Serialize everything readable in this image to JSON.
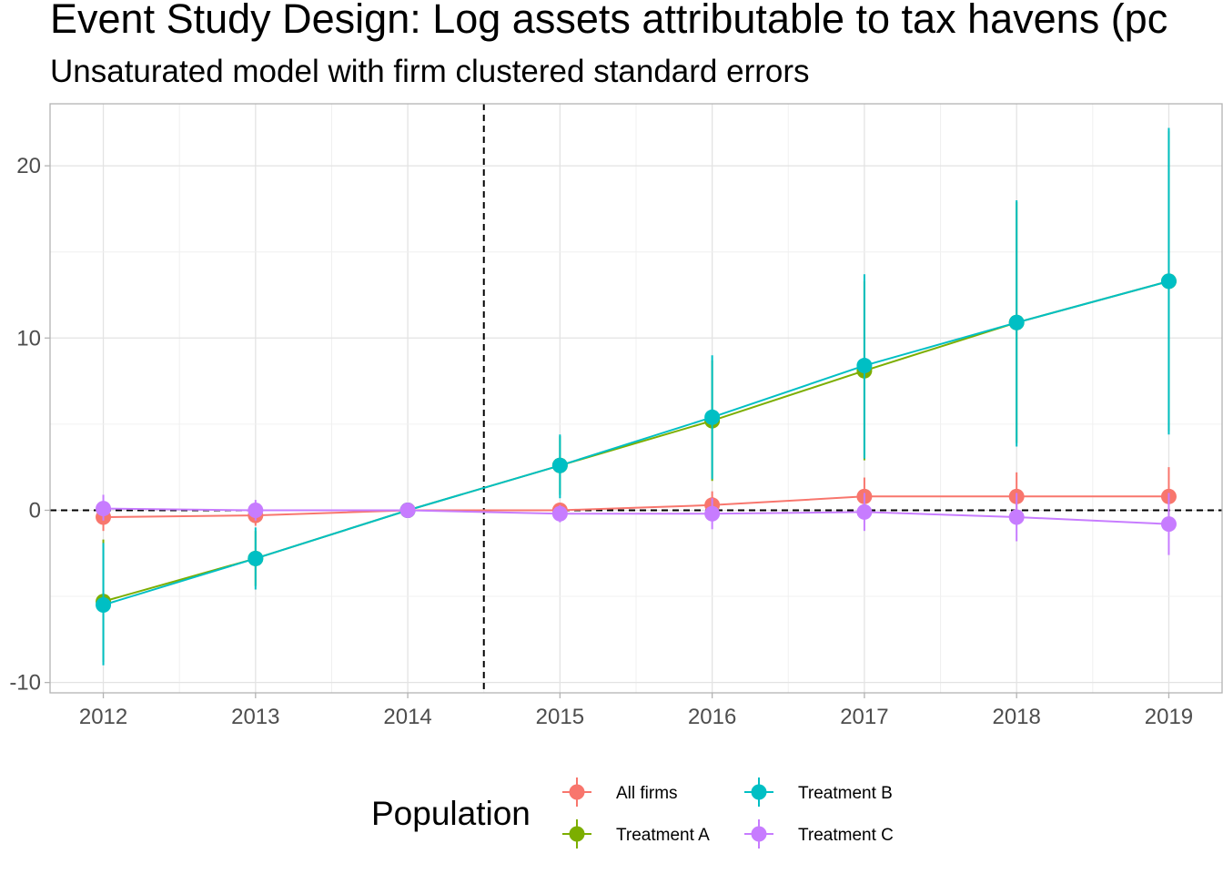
{
  "chart_data": {
    "type": "line",
    "title": "Event Study Design: Log assets attributable to tax havens (pc",
    "subtitle": "Unsaturated model with firm clustered standard errors",
    "x": [
      2012,
      2013,
      2014,
      2015,
      2016,
      2017,
      2018,
      2019
    ],
    "x_tick_labels": [
      "2012",
      "2013",
      "2014",
      "2015",
      "2016",
      "2017",
      "2018",
      "2019"
    ],
    "xlim": [
      2011.65,
      2019.35
    ],
    "y_ticks": [
      -10,
      0,
      10,
      20
    ],
    "y_tick_labels": [
      "-10",
      "0",
      "10",
      "20"
    ],
    "ylim": [
      -10.6,
      23.6
    ],
    "grid": true,
    "reference_lines": {
      "vertical_x": 2014.5,
      "horizontal_y": 0
    },
    "legend": {
      "title": "Population",
      "position": "bottom"
    },
    "series": [
      {
        "name": "All firms",
        "color": "#F8766D",
        "values": [
          -0.4,
          -0.3,
          0.0,
          0.0,
          0.3,
          0.8,
          0.8,
          0.8
        ],
        "lower": [
          -1.2,
          -0.9,
          0.0,
          -0.4,
          -0.5,
          -0.3,
          -0.5,
          -0.9
        ],
        "upper": [
          0.4,
          0.3,
          0.0,
          0.4,
          1.1,
          1.9,
          2.2,
          2.5
        ]
      },
      {
        "name": "Treatment A",
        "color": "#7CAE00",
        "values": [
          -5.3,
          -2.8,
          0.0,
          2.6,
          5.2,
          8.1,
          10.9,
          13.3
        ],
        "lower": [
          -8.8,
          -4.4,
          0.0,
          0.9,
          1.7,
          2.9,
          3.9,
          4.6
        ],
        "upper": [
          -1.7,
          -1.2,
          0.0,
          4.3,
          8.7,
          13.3,
          17.9,
          22.0
        ]
      },
      {
        "name": "Treatment B",
        "color": "#00BFC4",
        "values": [
          -5.5,
          -2.8,
          0.0,
          2.6,
          5.4,
          8.4,
          10.9,
          13.3
        ],
        "lower": [
          -9.0,
          -4.6,
          0.0,
          0.7,
          1.8,
          3.0,
          3.7,
          4.4
        ],
        "upper": [
          -1.9,
          -1.0,
          0.0,
          4.4,
          9.0,
          13.7,
          18.0,
          22.2
        ]
      },
      {
        "name": "Treatment C",
        "color": "#C77CFF",
        "values": [
          0.1,
          0.0,
          0.0,
          -0.2,
          -0.2,
          -0.1,
          -0.4,
          -0.8
        ],
        "lower": [
          -0.6,
          -0.6,
          0.0,
          -0.7,
          -1.1,
          -1.2,
          -1.8,
          -2.6
        ],
        "upper": [
          0.9,
          0.6,
          0.0,
          0.3,
          0.7,
          1.0,
          1.0,
          1.0
        ]
      }
    ]
  }
}
